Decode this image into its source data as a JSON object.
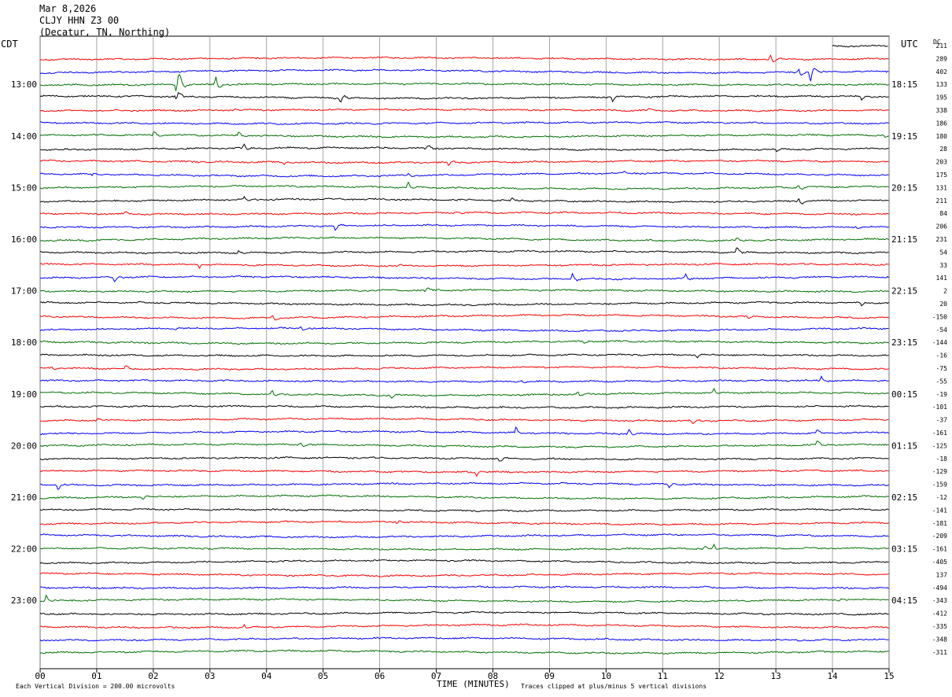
{
  "header": {
    "date": "Mar 8,2026",
    "station": "CLJY HHN Z3 00",
    "location": "(Decatur, TN, Northing)"
  },
  "left_timezone": "CDT",
  "right_timezone": "UTC",
  "dc_label": "DC",
  "footer": {
    "vertical_division": "Each Vertical Division =  200.00 microvolts",
    "xlabel": "TIME (MINUTES)",
    "clip_note": "Traces clipped at plus/minus 5 vertical divisions"
  },
  "colors": {
    "cycle": [
      "#000000",
      "#ff0000",
      "#0000ff",
      "#007000"
    ],
    "grid": "#909090"
  },
  "chart_data": {
    "type": "line",
    "xlabel": "TIME (MINUTES)",
    "x_ticks": [
      "00",
      "01",
      "02",
      "03",
      "04",
      "05",
      "06",
      "07",
      "08",
      "09",
      "10",
      "11",
      "12",
      "13",
      "14",
      "15"
    ],
    "xlim": [
      0,
      15
    ],
    "row_count": 48,
    "left_hour_labels": [
      {
        "row": 3,
        "label": "13:00"
      },
      {
        "row": 7,
        "label": "14:00"
      },
      {
        "row": 11,
        "label": "15:00"
      },
      {
        "row": 15,
        "label": "16:00"
      },
      {
        "row": 19,
        "label": "17:00"
      },
      {
        "row": 23,
        "label": "18:00"
      },
      {
        "row": 27,
        "label": "19:00"
      },
      {
        "row": 31,
        "label": "20:00"
      },
      {
        "row": 35,
        "label": "21:00"
      },
      {
        "row": 39,
        "label": "22:00"
      },
      {
        "row": 43,
        "label": "23:00"
      }
    ],
    "right_hour_labels": [
      {
        "row": 3,
        "label": "18:15"
      },
      {
        "row": 7,
        "label": "19:15"
      },
      {
        "row": 11,
        "label": "20:15"
      },
      {
        "row": 15,
        "label": "21:15"
      },
      {
        "row": 19,
        "label": "22:15"
      },
      {
        "row": 23,
        "label": "23:15"
      },
      {
        "row": 27,
        "label": "00:15"
      },
      {
        "row": 31,
        "label": "01:15"
      },
      {
        "row": 35,
        "label": "02:15"
      },
      {
        "row": 39,
        "label": "03:15"
      },
      {
        "row": 43,
        "label": "04:15"
      }
    ],
    "dc_offsets": [
      "211",
      "289",
      "402",
      "133",
      "195",
      "338",
      "186",
      "180",
      "28",
      "203",
      "175",
      "131",
      "211",
      "84",
      "206",
      "231",
      "54",
      "33",
      "141",
      "2",
      "20",
      "-150",
      "-54",
      "-144",
      "-16",
      "-75",
      "-55",
      "-19",
      "-101",
      "-37",
      "-161",
      "-125",
      "-18",
      "-129",
      "-159",
      "-12",
      "-141",
      "-181",
      "-209",
      "-161",
      "-405",
      "137",
      "-494",
      "-343",
      "-412",
      "-335",
      "-348",
      "-311"
    ],
    "events": [
      {
        "row": 1,
        "minute": 12.9,
        "amp": 12
      },
      {
        "row": 2,
        "minute": 13.4,
        "amp": 10
      },
      {
        "row": 2,
        "minute": 13.6,
        "amp": 22
      },
      {
        "row": 3,
        "minute": 2.4,
        "amp": 40
      },
      {
        "row": 3,
        "minute": 3.1,
        "amp": 14
      },
      {
        "row": 4,
        "minute": 2.4,
        "amp": 14
      },
      {
        "row": 4,
        "minute": 5.3,
        "amp": 12
      },
      {
        "row": 4,
        "minute": 10.1,
        "amp": 6
      },
      {
        "row": 4,
        "minute": 14.5,
        "amp": 5
      },
      {
        "row": 5,
        "minute": 3.4,
        "amp": 5
      },
      {
        "row": 5,
        "minute": 10.7,
        "amp": 5
      },
      {
        "row": 7,
        "minute": 2.0,
        "amp": 6
      },
      {
        "row": 7,
        "minute": 3.5,
        "amp": 5
      },
      {
        "row": 7,
        "minute": 14.9,
        "amp": 5
      },
      {
        "row": 8,
        "minute": 3.6,
        "amp": 7
      },
      {
        "row": 8,
        "minute": 6.8,
        "amp": 9
      },
      {
        "row": 8,
        "minute": 13.0,
        "amp": 5
      },
      {
        "row": 9,
        "minute": 4.3,
        "amp": 4
      },
      {
        "row": 9,
        "minute": 7.2,
        "amp": 6
      },
      {
        "row": 10,
        "minute": 0.9,
        "amp": 4
      },
      {
        "row": 10,
        "minute": 6.5,
        "amp": 4
      },
      {
        "row": 10,
        "minute": 10.3,
        "amp": 4
      },
      {
        "row": 11,
        "minute": 6.5,
        "amp": 7
      },
      {
        "row": 11,
        "minute": 13.4,
        "amp": 6
      },
      {
        "row": 12,
        "minute": 3.6,
        "amp": 5
      },
      {
        "row": 12,
        "minute": 8.3,
        "amp": 5
      },
      {
        "row": 12,
        "minute": 13.4,
        "amp": 10
      },
      {
        "row": 13,
        "minute": 1.5,
        "amp": 4
      },
      {
        "row": 13,
        "minute": 7.3,
        "amp": 6
      },
      {
        "row": 14,
        "minute": 5.2,
        "amp": 8
      },
      {
        "row": 14,
        "minute": 14.4,
        "amp": 4
      },
      {
        "row": 15,
        "minute": 12.3,
        "amp": 4
      },
      {
        "row": 16,
        "minute": 3.5,
        "amp": 3
      },
      {
        "row": 16,
        "minute": 12.3,
        "amp": 7
      },
      {
        "row": 17,
        "minute": 2.8,
        "amp": 5
      },
      {
        "row": 17,
        "minute": 6.3,
        "amp": 6
      },
      {
        "row": 18,
        "minute": 1.3,
        "amp": 7
      },
      {
        "row": 18,
        "minute": 9.4,
        "amp": 8
      },
      {
        "row": 18,
        "minute": 11.4,
        "amp": 7
      },
      {
        "row": 19,
        "minute": 6.8,
        "amp": 7
      },
      {
        "row": 20,
        "minute": 14.5,
        "amp": 5
      },
      {
        "row": 21,
        "minute": 4.1,
        "amp": 7
      },
      {
        "row": 21,
        "minute": 12.5,
        "amp": 5
      },
      {
        "row": 22,
        "minute": 4.6,
        "amp": 6
      },
      {
        "row": 22,
        "minute": 2.4,
        "amp": 3
      },
      {
        "row": 23,
        "minute": 9.6,
        "amp": 4
      },
      {
        "row": 24,
        "minute": 11.6,
        "amp": 5
      },
      {
        "row": 25,
        "minute": 1.5,
        "amp": 6
      },
      {
        "row": 25,
        "minute": 0.2,
        "amp": 4
      },
      {
        "row": 26,
        "minute": 8.5,
        "amp": 4
      },
      {
        "row": 26,
        "minute": 13.8,
        "amp": 5
      },
      {
        "row": 27,
        "minute": 4.1,
        "amp": 9
      },
      {
        "row": 27,
        "minute": 9.5,
        "amp": 8
      },
      {
        "row": 27,
        "minute": 11.9,
        "amp": 7
      },
      {
        "row": 27,
        "minute": 6.2,
        "amp": 5
      },
      {
        "row": 29,
        "minute": 1.0,
        "amp": 5
      },
      {
        "row": 29,
        "minute": 11.5,
        "amp": 7
      },
      {
        "row": 30,
        "minute": 8.4,
        "amp": 7
      },
      {
        "row": 30,
        "minute": 10.4,
        "amp": 7
      },
      {
        "row": 30,
        "minute": 13.7,
        "amp": 8
      },
      {
        "row": 31,
        "minute": 4.6,
        "amp": 6
      },
      {
        "row": 31,
        "minute": 13.7,
        "amp": 9
      },
      {
        "row": 32,
        "minute": 8.1,
        "amp": 6
      },
      {
        "row": 33,
        "minute": 7.7,
        "amp": 6
      },
      {
        "row": 34,
        "minute": 0.3,
        "amp": 8
      },
      {
        "row": 34,
        "minute": 11.1,
        "amp": 6
      },
      {
        "row": 35,
        "minute": 1.8,
        "amp": 4
      },
      {
        "row": 37,
        "minute": 6.3,
        "amp": 6
      },
      {
        "row": 39,
        "minute": 11.7,
        "amp": 6
      },
      {
        "row": 39,
        "minute": 11.9,
        "amp": 7
      },
      {
        "row": 42,
        "minute": 11.7,
        "amp": 4
      },
      {
        "row": 43,
        "minute": 0.1,
        "amp": 8
      },
      {
        "row": 43,
        "minute": 14.1,
        "amp": 4
      },
      {
        "row": 45,
        "minute": 3.6,
        "amp": 5
      }
    ]
  }
}
